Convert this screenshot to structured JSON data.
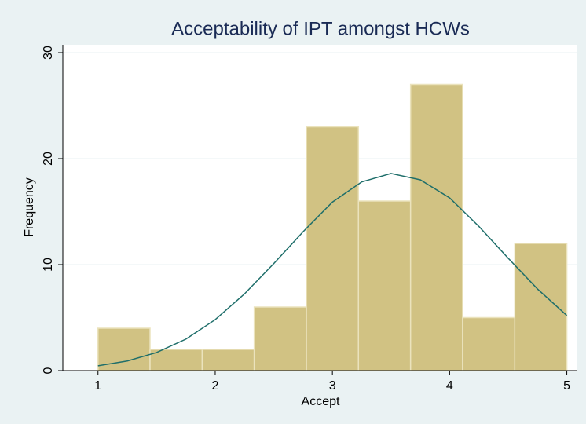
{
  "chart_data": {
    "type": "histogram",
    "title": "Acceptability of IPT amongst HCWs",
    "xlabel": "Accept",
    "ylabel": "Frequency",
    "bins": [
      1,
      1.444,
      1.889,
      2.333,
      2.778,
      3.222,
      3.667,
      4.111,
      4.556,
      5
    ],
    "counts": [
      4,
      2,
      2,
      6,
      23,
      16,
      27,
      5,
      12
    ],
    "color": "#d1c283",
    "edgecolor": "#ebe3bd",
    "curve": {
      "color": "#1e6e6a",
      "x": [
        1,
        1.25,
        1.5,
        1.75,
        2,
        2.25,
        2.5,
        2.75,
        3,
        3.25,
        3.5,
        3.75,
        4,
        4.25,
        4.5,
        4.75,
        5
      ],
      "values": [
        0.45,
        0.91,
        1.71,
        2.97,
        4.81,
        7.24,
        10.1,
        13.1,
        15.9,
        17.8,
        18.6,
        18.0,
        16.3,
        13.6,
        10.6,
        7.7,
        5.2
      ]
    },
    "xlim": [
      0.7,
      5.09
    ],
    "xticks": [
      1,
      2,
      3,
      4,
      5
    ],
    "ylim": [
      0,
      30.74
    ],
    "yticks": [
      0,
      10,
      20,
      30
    ],
    "grid": true
  }
}
